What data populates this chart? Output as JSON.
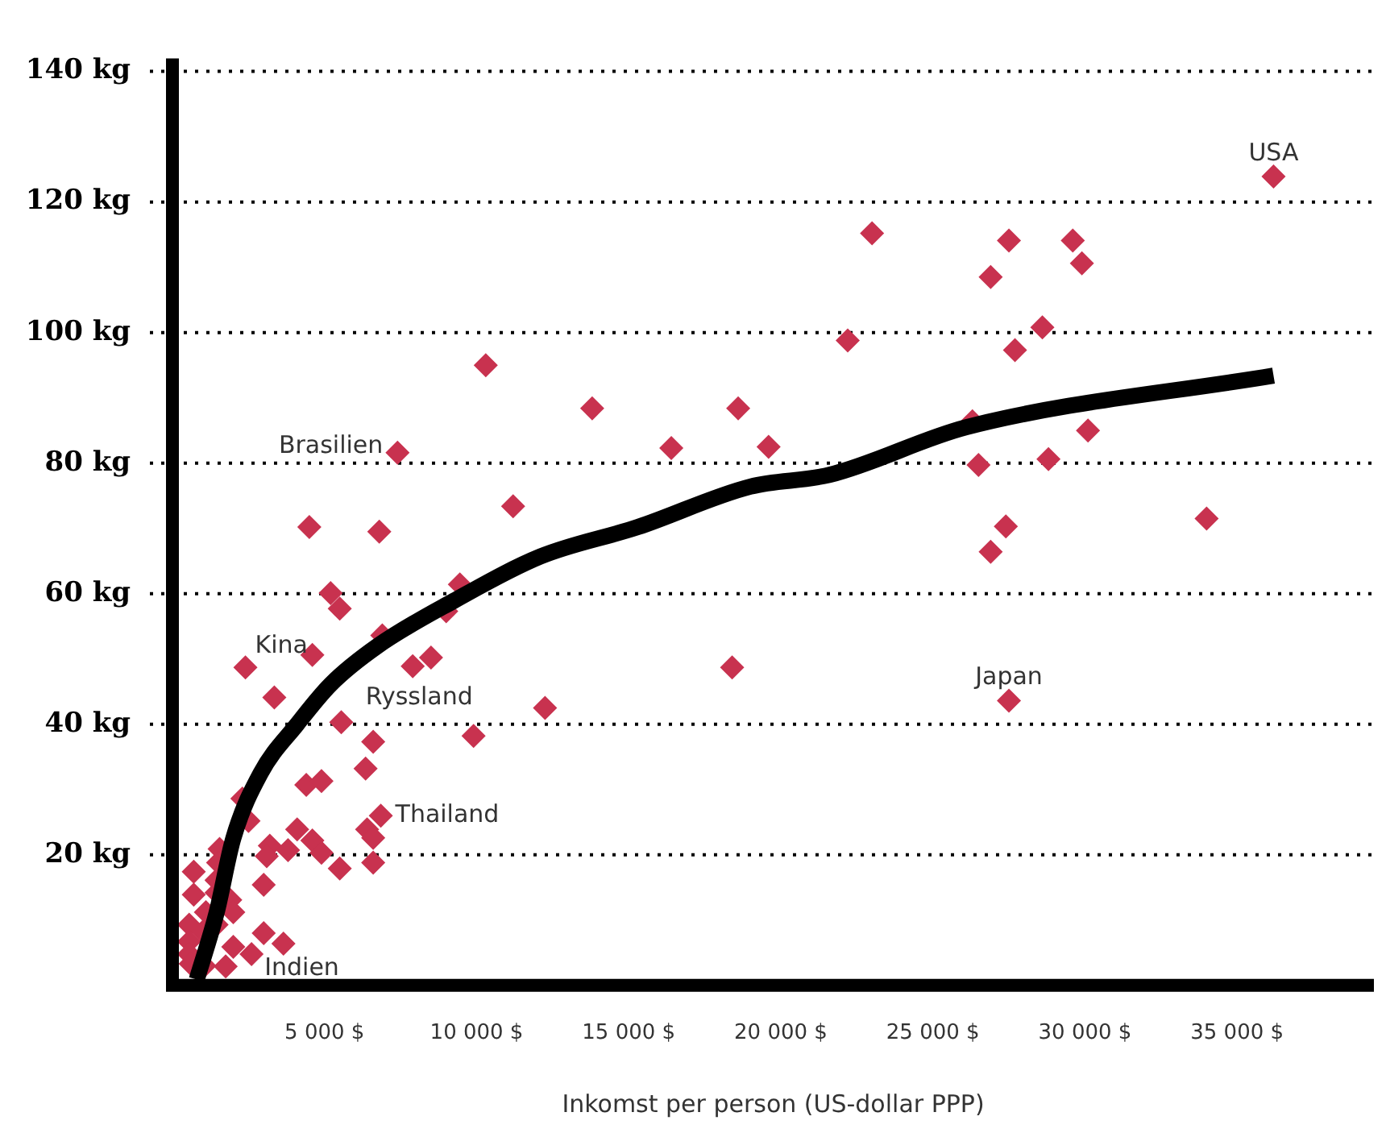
{
  "chart_data": {
    "type": "scatter",
    "xlabel": "Inkomst per person (US-dollar PPP)",
    "xlim": [
      0,
      39500
    ],
    "ylim": [
      0,
      142
    ],
    "xticks": [
      {
        "value": 5000,
        "label": "5 000 $"
      },
      {
        "value": 10000,
        "label": "10 000 $"
      },
      {
        "value": 15000,
        "label": "15 000 $"
      },
      {
        "value": 20000,
        "label": "20 000 $"
      },
      {
        "value": 25000,
        "label": "25 000 $"
      },
      {
        "value": 30000,
        "label": "30 000 $"
      },
      {
        "value": 35000,
        "label": "35 000 $"
      }
    ],
    "yticks": [
      {
        "value": 20,
        "label": "20 kg"
      },
      {
        "value": 40,
        "label": "40 kg"
      },
      {
        "value": 60,
        "label": "60 kg"
      },
      {
        "value": 80,
        "label": "80 kg"
      },
      {
        "value": 100,
        "label": "100 kg"
      },
      {
        "value": 120,
        "label": "120 kg"
      },
      {
        "value": 140,
        "label": "140 kg"
      }
    ],
    "grid": "y",
    "legend": false,
    "marker": "diamond",
    "series": [
      {
        "color": "#c8324f",
        "x": [
          10300,
          13800,
          18600,
          16400,
          7400,
          19600,
          11200,
          4500,
          6800,
          36200,
          23000,
          27500,
          29600,
          29900,
          26900,
          22200,
          28600,
          27700,
          26300,
          30100,
          26500,
          28800,
          27400,
          34000,
          26900,
          27500,
          5200,
          5500,
          9450,
          9000,
          6900,
          4600,
          2400,
          7900,
          8500,
          18400,
          3350,
          12250,
          5550,
          9900,
          6600,
          6350,
          4400,
          4900,
          2300,
          2500,
          6850,
          6400,
          6600,
          4100,
          3200,
          3100,
          3800,
          4600,
          4900,
          5500,
          6600,
          3000,
          3000,
          3650,
          2600,
          2000,
          1750,
          1550,
          1500,
          700,
          1450,
          1450,
          700,
          1900,
          2000,
          1100,
          1450,
          550,
          1000,
          550,
          550,
          600,
          1050
        ],
        "values": [
          95,
          88.4,
          88.4,
          82.3,
          81.6,
          82.5,
          73.4,
          70.2,
          69.5,
          123.9,
          115.2,
          114.1,
          114.1,
          110.6,
          108.5,
          98.8,
          100.8,
          97.3,
          86.4,
          85,
          79.7,
          80.6,
          70.3,
          71.5,
          66.4,
          43.6,
          60.1,
          57.7,
          61.4,
          57.3,
          53.6,
          50.6,
          48.7,
          48.9,
          50.2,
          48.7,
          44.1,
          42.5,
          40.3,
          38.2,
          37.3,
          33.2,
          30.7,
          31.3,
          28.6,
          25.2,
          26,
          23.9,
          22.6,
          23.9,
          21.4,
          19.8,
          20.7,
          22.2,
          20.3,
          17.9,
          18.8,
          15.4,
          8,
          6.4,
          4.8,
          5.9,
          2.9,
          20.9,
          18.8,
          17.4,
          16.1,
          14.2,
          13.9,
          13.1,
          11.2,
          11.2,
          9.3,
          9.3,
          8.2,
          6.7,
          4.8,
          3.3,
          3
        ]
      },
      {
        "type": "line",
        "color": "#000000",
        "marker": "none",
        "x": [
          800,
          1450,
          2000,
          2900,
          4100,
          5200,
          6750,
          9250,
          12100,
          15300,
          19000,
          21600,
          26100,
          36200
        ],
        "values": [
          0.9,
          11.1,
          22.5,
          32.5,
          40,
          46.1,
          52,
          58.9,
          65.7,
          70.2,
          76.4,
          78.2,
          85.5,
          93.4
        ]
      }
    ],
    "annotations": [
      {
        "text": "USA",
        "x": 36200,
        "y": 123.9
      },
      {
        "text": "Brasilien",
        "x": 7400,
        "y": 81.6
      },
      {
        "text": "Kina",
        "x": 2400,
        "y": 48.7
      },
      {
        "text": "Ryssland",
        "x": 7900,
        "y": 48.9
      },
      {
        "text": "Japan",
        "x": 27500,
        "y": 43.6
      },
      {
        "text": "Thailand",
        "x": 6850,
        "y": 26
      },
      {
        "text": "Indien",
        "x": 2600,
        "y": 4.8
      }
    ]
  }
}
